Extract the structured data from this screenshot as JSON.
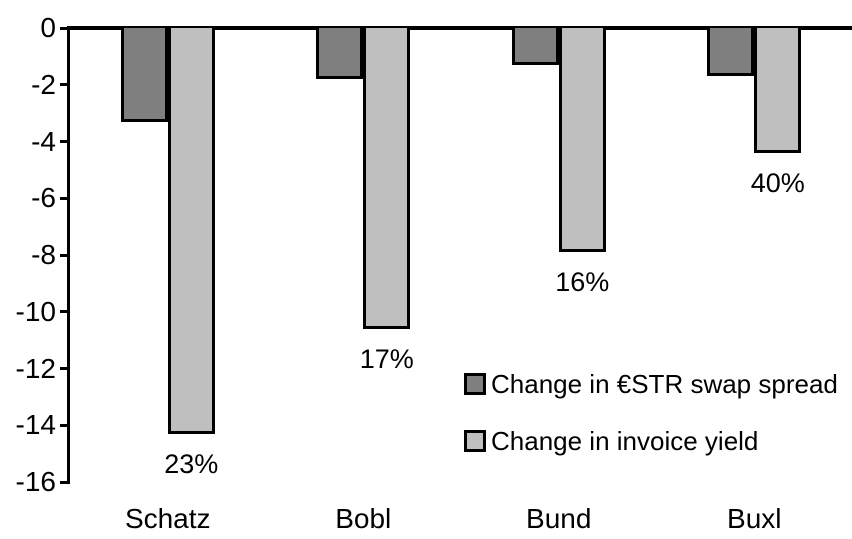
{
  "chart_data": {
    "type": "bar",
    "categories": [
      "Schatz",
      "Bobl",
      "Bund",
      "Buxl"
    ],
    "series": [
      {
        "name": "Change in €STR swap spread",
        "color": "#7f7f7f",
        "values": [
          -3.3,
          -1.8,
          -1.3,
          -1.7
        ]
      },
      {
        "name": "Change in invoice yield",
        "color": "#bfbfbf",
        "values": [
          -14.3,
          -10.6,
          -7.9,
          -4.4
        ],
        "bar_labels": [
          "23%",
          "17%",
          "16%",
          "40%"
        ]
      }
    ],
    "ylim": [
      -16,
      0
    ],
    "yticks": [
      0,
      -2,
      -4,
      -6,
      -8,
      -10,
      -12,
      -14,
      -16
    ],
    "grid": false,
    "legend_position": "inside-right",
    "axis_color": "#000000",
    "background_color": "#ffffff"
  }
}
